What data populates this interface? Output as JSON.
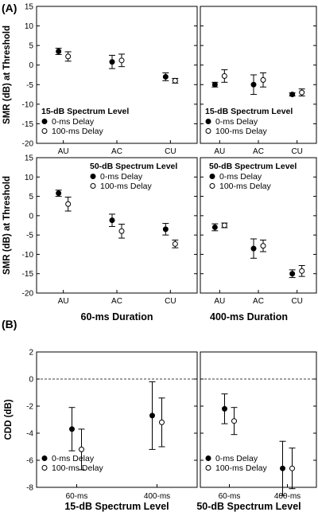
{
  "figure": {
    "panel_labels": [
      "(A)",
      "(B)"
    ],
    "top_xtitles": [
      "60-ms Duration",
      "400-ms Duration"
    ],
    "bottom_xtitles": [
      "15-dB Spectrum Level",
      "50-dB Spectrum Level"
    ],
    "colors": {
      "marker": "#000000",
      "open_fill": "#ffffff",
      "background": "#ffffff"
    }
  },
  "chart_data": [
    {
      "id": "A-top-left",
      "type": "scatter",
      "ylabel": "SMR (dB) at Threshold",
      "legend_title": "15-dB Spectrum Level",
      "legend_position": "bottom-left",
      "ylim": [
        -20,
        15
      ],
      "yticks": [
        15,
        10,
        5,
        0,
        -5,
        -10,
        -15,
        -20
      ],
      "categories": [
        "AU",
        "AC",
        "CU"
      ],
      "series": [
        {
          "name": "0-ms Delay",
          "marker": "filled",
          "y": [
            3.5,
            0.8,
            -3.0
          ],
          "err": [
            0.8,
            1.7,
            1.0
          ]
        },
        {
          "name": "100-ms Delay",
          "marker": "open",
          "y": [
            2.2,
            1.2,
            -4.0
          ],
          "err": [
            1.2,
            1.6,
            0.6
          ]
        }
      ]
    },
    {
      "id": "A-top-right",
      "type": "scatter",
      "ylabel": "",
      "legend_title": "15-dB Spectrum Level",
      "legend_position": "bottom-left",
      "ylim": [
        -20,
        15
      ],
      "yticks": [
        15,
        10,
        5,
        0,
        -5,
        -10,
        -15,
        -20
      ],
      "categories": [
        "AU",
        "AC",
        "CU"
      ],
      "series": [
        {
          "name": "0-ms Delay",
          "marker": "filled",
          "y": [
            -5.0,
            -5.0,
            -7.5
          ],
          "err": [
            0.6,
            2.5,
            0.4
          ]
        },
        {
          "name": "100-ms Delay",
          "marker": "open",
          "y": [
            -2.8,
            -3.8,
            -7.0
          ],
          "err": [
            1.6,
            1.8,
            0.9
          ]
        }
      ]
    },
    {
      "id": "A-bottom-left",
      "type": "scatter",
      "ylabel": "SMR (dB) at Threshold",
      "legend_title": "50-dB Spectrum Level",
      "legend_position": "top-right",
      "ylim": [
        -20,
        15
      ],
      "yticks": [
        15,
        10,
        5,
        0,
        -5,
        -10,
        -15,
        -20
      ],
      "categories": [
        "AU",
        "AC",
        "CU"
      ],
      "series": [
        {
          "name": "0-ms Delay",
          "marker": "filled",
          "y": [
            5.8,
            -1.2,
            -3.5
          ],
          "err": [
            0.8,
            1.6,
            1.5
          ]
        },
        {
          "name": "100-ms Delay",
          "marker": "open",
          "y": [
            3.0,
            -4.0,
            -7.3
          ],
          "err": [
            1.8,
            1.8,
            1.0
          ]
        }
      ]
    },
    {
      "id": "A-bottom-right",
      "type": "scatter",
      "ylabel": "",
      "legend_title": "50-dB Spectrum Level",
      "legend_position": "top-right",
      "ylim": [
        -20,
        15
      ],
      "yticks": [
        15,
        10,
        5,
        0,
        -5,
        -10,
        -15,
        -20
      ],
      "categories": [
        "AU",
        "AC",
        "CU"
      ],
      "series": [
        {
          "name": "0-ms Delay",
          "marker": "filled",
          "y": [
            -3.0,
            -8.5,
            -15.0
          ],
          "err": [
            0.9,
            2.5,
            1.0
          ]
        },
        {
          "name": "100-ms Delay",
          "marker": "open",
          "y": [
            -2.5,
            -7.8,
            -14.3
          ],
          "err": [
            0.6,
            1.5,
            1.4
          ]
        }
      ]
    },
    {
      "id": "B-left",
      "type": "scatter",
      "ylabel": "CDD (dB)",
      "legend_position": "bottom-left",
      "reference_line": 0,
      "ylim": [
        -8,
        2
      ],
      "yticks": [
        2,
        0,
        -2,
        -4,
        -6,
        -8
      ],
      "categories": [
        "60-ms",
        "400-ms"
      ],
      "series": [
        {
          "name": "0-ms Delay",
          "marker": "filled",
          "y": [
            -3.7,
            -2.7
          ],
          "err": [
            1.6,
            2.5
          ]
        },
        {
          "name": "100-ms Delay",
          "marker": "open",
          "y": [
            -5.2,
            -3.2
          ],
          "err": [
            1.5,
            1.8
          ]
        }
      ]
    },
    {
      "id": "B-right",
      "type": "scatter",
      "ylabel": "",
      "legend_position": "bottom-left",
      "reference_line": 0,
      "ylim": [
        -8,
        2
      ],
      "yticks": [
        2,
        0,
        -2,
        -4,
        -6,
        -8
      ],
      "categories": [
        "60-ms",
        "400-ms"
      ],
      "series": [
        {
          "name": "0-ms Delay",
          "marker": "filled",
          "y": [
            -2.2,
            -6.6
          ],
          "err": [
            1.1,
            2.0
          ]
        },
        {
          "name": "100-ms Delay",
          "marker": "open",
          "y": [
            -3.1,
            -6.6
          ],
          "err": [
            1.0,
            1.5
          ]
        }
      ]
    }
  ]
}
